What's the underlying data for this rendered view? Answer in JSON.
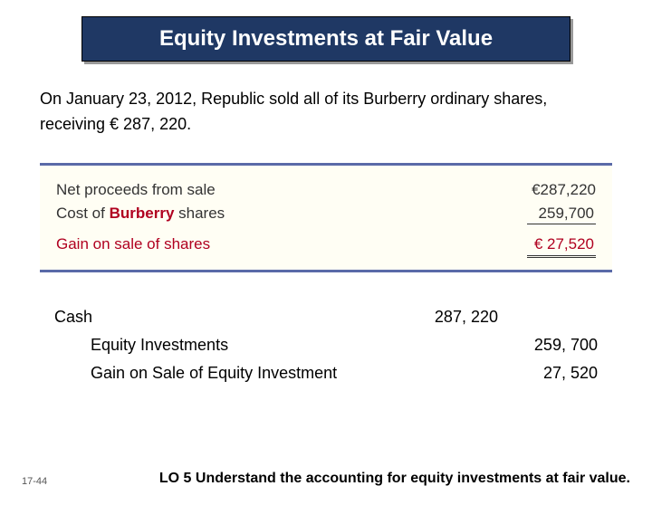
{
  "title": "Equity Investments at Fair Value",
  "intro": "On January 23, 2012, Republic sold all of its Burberry ordinary shares, receiving € 287, 220.",
  "calc": {
    "row1_label_pre": "Net proceeds from sale",
    "row1_amount": "€287,220",
    "row2_label_pre": "Cost of ",
    "row2_brand": "Burberry",
    "row2_label_post": " shares",
    "row2_amount": "259,700",
    "row3_label": "Gain on sale of shares",
    "row3_amount": "€  27,520",
    "brand_color": "#b00020",
    "bg_color": "#fffef4",
    "border_color": "#5a6aa8"
  },
  "journal": {
    "r1_acct": "Cash",
    "r1_debit": "287, 220",
    "r2_acct": "Equity Investments",
    "r2_credit": "259, 700",
    "r3_acct": "Gain on Sale of Equity Investment",
    "r3_credit": "27, 520"
  },
  "slide_number": "17-44",
  "learning_objective": "LO 5  Understand the accounting for equity investments at fair value."
}
